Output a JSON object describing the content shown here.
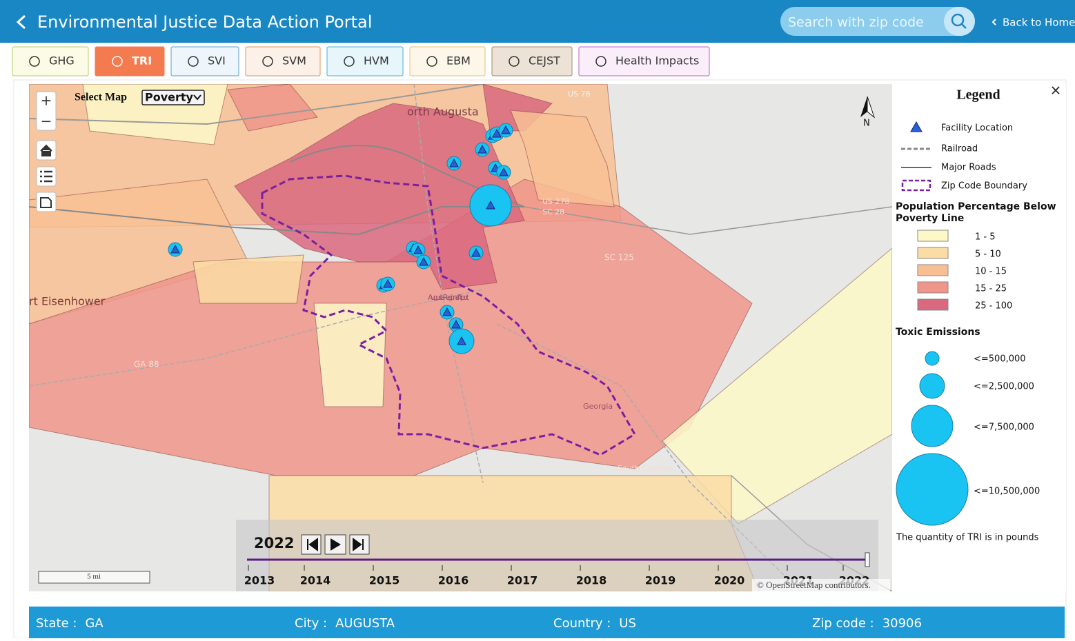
{
  "header": {
    "title": "Environmental Justice Data Action Portal",
    "search_placeholder": "Search with zip code",
    "back": "Back to Home"
  },
  "tabs": [
    "GHG",
    "TRI",
    "SVI",
    "SVM",
    "HVM",
    "EBM",
    "CEJST",
    "Health Impacts"
  ],
  "map": {
    "select_label": "Select Map",
    "select_value": "Poverty",
    "zoom_in": "+",
    "zoom_out": "−",
    "north": "N",
    "scale": "5 mi",
    "attribution": "© OpenStreetMap contributors.",
    "place_labels": [
      "orth Augusta",
      "rt Eisenhower",
      "US 278",
      "SC 28",
      "SC 125",
      "GA 88",
      "US 78",
      "Augusta Regional Airport",
      "Georgia",
      "South Carolina"
    ]
  },
  "legend": {
    "title": "Legend",
    "close": "×",
    "items": [
      "Facility Location",
      "Railroad",
      "Major Roads",
      "Zip Code Boundary"
    ],
    "poverty_title": [
      "Population Percentage Below",
      "Poverty Line"
    ],
    "poverty_classes": [
      {
        "label": "1 - 5",
        "color": "#fcf8c8"
      },
      {
        "label": "5 - 10",
        "color": "#fbdca5"
      },
      {
        "label": "10 - 15",
        "color": "#f8bf94"
      },
      {
        "label": "15 - 25",
        "color": "#f0958a"
      },
      {
        "label": "25 - 100",
        "color": "#d9697f"
      }
    ],
    "emissions_title": "Toxic Emissions",
    "emission_sizes": [
      "<=500,000",
      "<=2,500,000",
      "<=7,500,000",
      "<=10,500,000"
    ],
    "note": "The quantity of TRI is in pounds"
  },
  "timeline": {
    "year": "2022",
    "years": [
      "2013",
      "2014",
      "2015",
      "2016",
      "2017",
      "2018",
      "2019",
      "2020",
      "2021",
      "2022"
    ]
  },
  "info": [
    {
      "label": "State :",
      "value": "GA"
    },
    {
      "label": "City :",
      "value": "AUGUSTA"
    },
    {
      "label": "Country :",
      "value": "US"
    },
    {
      "label": "Zip code :",
      "value": "30906"
    }
  ]
}
